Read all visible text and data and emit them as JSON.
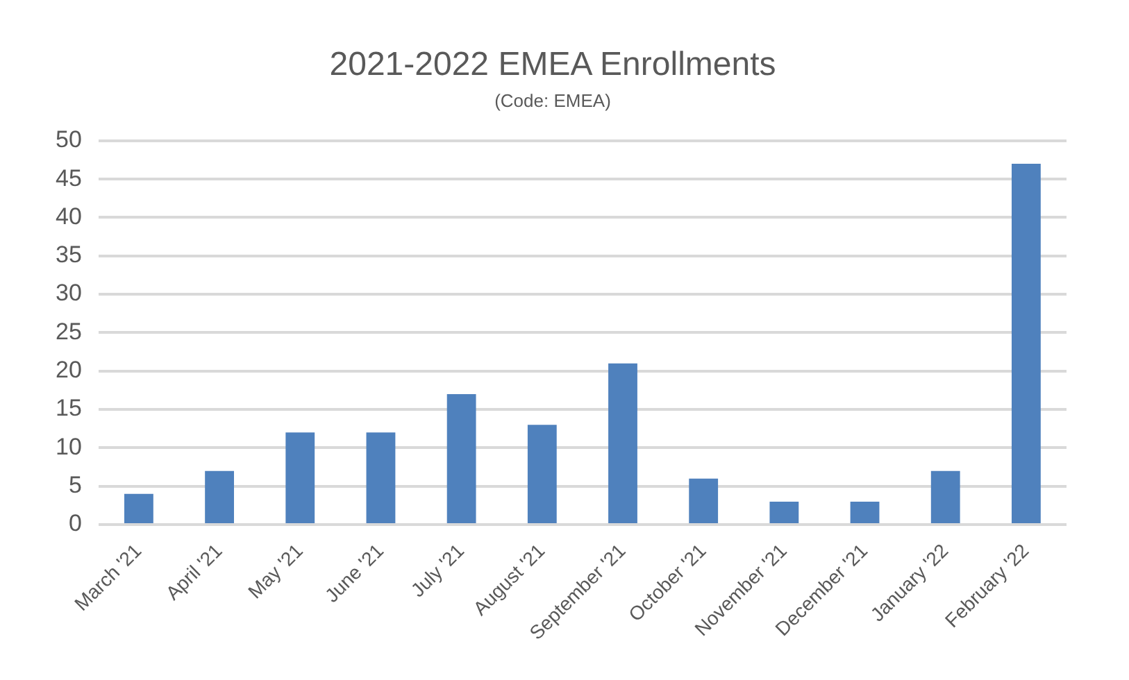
{
  "chart_data": {
    "type": "bar",
    "title": "2021-2022 EMEA Enrollments",
    "subtitle": "(Code: EMEA)",
    "categories": [
      "March '21",
      "April '21",
      "May '21",
      "June '21",
      "July '21",
      "August '21",
      "September '21",
      "October '21",
      "November '21",
      "December '21",
      "January '22",
      "February '22"
    ],
    "values": [
      4,
      7,
      12,
      12,
      17,
      13,
      21,
      6,
      3,
      3,
      7,
      47
    ],
    "color": "#4f81bd",
    "ylim": [
      0,
      50
    ],
    "yticks": [
      0,
      5,
      10,
      15,
      20,
      25,
      30,
      35,
      40,
      45,
      50
    ],
    "grid": "y"
  }
}
